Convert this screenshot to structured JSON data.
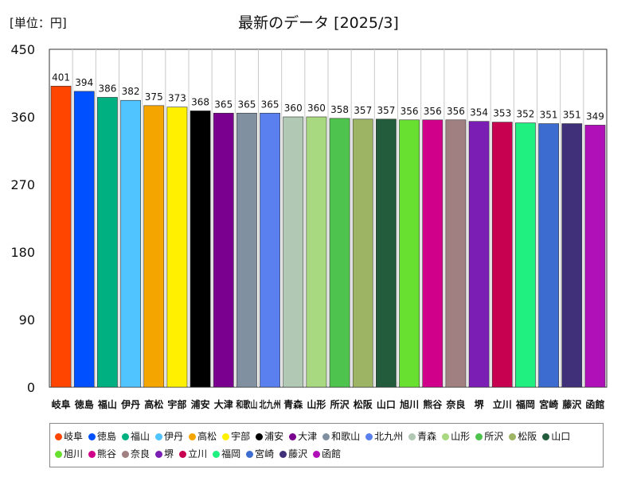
{
  "unit_label": "[単位：円]",
  "chart_data": {
    "type": "bar",
    "title": "最新のデータ [2025/3]",
    "xlabel": "",
    "ylabel": "",
    "ylim": [
      0,
      450
    ],
    "y_ticks": [
      "0",
      "90",
      "180",
      "270",
      "360",
      "450"
    ],
    "grid": "vertical",
    "legend_position": "bottom",
    "categories": [
      "岐阜",
      "徳島",
      "福山",
      "伊丹",
      "高松",
      "宇部",
      "浦安",
      "大津",
      "和歌山",
      "北九州",
      "青森",
      "山形",
      "所沢",
      "松阪",
      "山口",
      "旭川",
      "熊谷",
      "奈良",
      "堺",
      "立川",
      "福岡",
      "宮崎",
      "藤沢",
      "函館"
    ],
    "values": [
      401,
      394,
      386,
      382,
      375,
      373,
      368,
      365,
      365,
      365,
      360,
      360,
      358,
      357,
      357,
      356,
      356,
      356,
      354,
      353,
      352,
      351,
      351,
      349
    ],
    "value_labels": [
      "401",
      "394",
      "386",
      "382",
      "375",
      "373",
      "368",
      "365",
      "365",
      "365",
      "360",
      "360",
      "358",
      "357",
      "357",
      "356",
      "356",
      "356",
      "354",
      "353",
      "352",
      "351",
      "351",
      "349"
    ],
    "colors": [
      "#ff4500",
      "#0050ff",
      "#00b080",
      "#50c4ff",
      "#f5a500",
      "#fff000",
      "#000000",
      "#7a0090",
      "#8090a0",
      "#5a80f0",
      "#b0c8b4",
      "#a8d880",
      "#4ec44e",
      "#9cb464",
      "#225c3c",
      "#68e030",
      "#d0008a",
      "#a08080",
      "#7a1eb4",
      "#c80050",
      "#20f080",
      "#3c6cd0",
      "#40307a",
      "#b010b8"
    ]
  }
}
